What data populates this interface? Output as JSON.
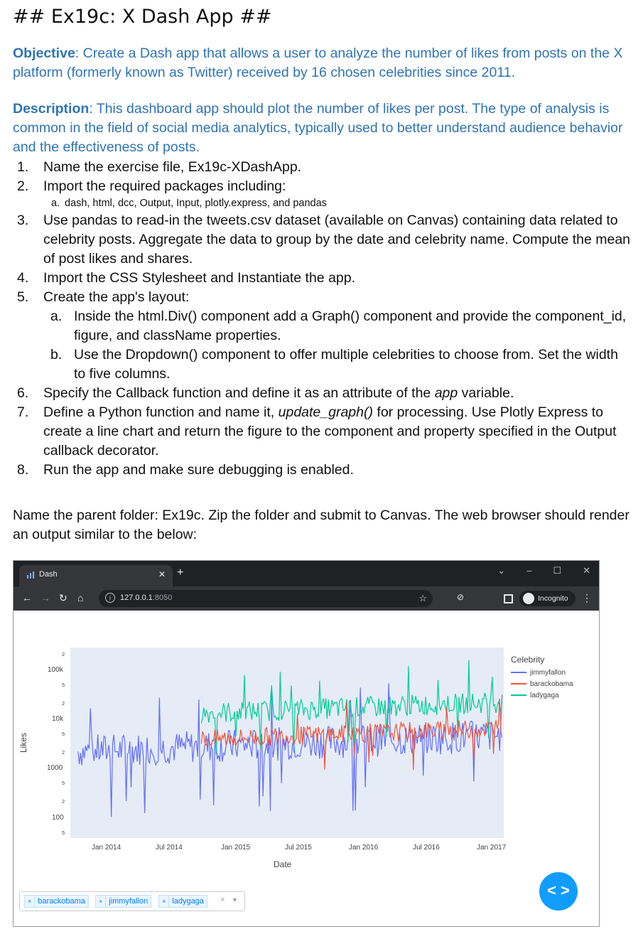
{
  "heading": "## Ex19c: X Dash App ##",
  "objective": {
    "label": "Objective",
    "text": ": Create a Dash app that allows a user to analyze the number of likes from posts on the X platform (formerly known as Twitter) received by 16 chosen celebrities since 2011."
  },
  "description": {
    "label": "Description",
    "text": ": This dashboard app should plot the number of likes per post. The type of analysis is common in the field of social media analytics, typically used to better understand audience behavior and the effectiveness of posts."
  },
  "steps": [
    {
      "num": "1.",
      "text": "Name the exercise file, Ex19c-XDashApp."
    },
    {
      "num": "2.",
      "text": "Import the required packages including:"
    },
    {
      "num": "a.",
      "text": "dash, html, dcc, Output, Input, plotly.express, and pandas"
    },
    {
      "num": "3.",
      "text": "Use pandas to read-in the tweets.csv dataset (available on Canvas) containing data related to celebrity posts. Aggregate the data to group by the date and celebrity name. Compute the mean of post likes and shares."
    },
    {
      "num": "4.",
      "text": "Import the CSS Stylesheet and Instantiate the app."
    },
    {
      "num": "5.",
      "text": "Create the app's layout:"
    },
    {
      "num": "a.",
      "text": "Inside the html.Div() component add a Graph() component and provide the component_id, figure, and className properties."
    },
    {
      "num": "b.",
      "text": "Use the Dropdown() component to offer multiple celebrities to choose from. Set the width to five columns."
    },
    {
      "num": "6.",
      "text_a": "Specify the Callback function and define it as an attribute of the ",
      "text_em": "app",
      "text_b": " variable."
    },
    {
      "num": "7.",
      "text_a": "Define a Python function and name it, ",
      "text_em": "update_graph()",
      "text_b": " for processing. Use Plotly Express to create a line chart and return the figure to the component and property specified in the Output callback decorator."
    },
    {
      "num": "8.",
      "text": "Run the app and make sure debugging is enabled."
    }
  ],
  "closing": "Name the parent folder: Ex19c. Zip the folder and submit to Canvas. The web browser should render an output similar to the below:",
  "browser": {
    "tab_title": "Dash",
    "url_host": "127.0.0.1",
    "url_port": ":8050",
    "incognito": "Incognito"
  },
  "chart_data": {
    "type": "line",
    "ylabel": "Likes",
    "xlabel": "Date",
    "yscale": "log",
    "ylim": [
      30,
      300000
    ],
    "y_major_ticks": [
      "100k",
      "10k",
      "1000",
      "100"
    ],
    "y_minor_ticks": [
      "2",
      "5",
      "2",
      "5",
      "2",
      "5",
      "2",
      "5"
    ],
    "x_ticks": [
      "Jan 2014",
      "Jul 2014",
      "Jan 2015",
      "Jul 2015",
      "Jan 2016",
      "Jul 2016",
      "Jan 2017"
    ],
    "legend_title": "Celebrity",
    "series": [
      {
        "name": "jimmyfallon",
        "color": "#636efa",
        "x_range": [
          "2013-08",
          "2017-01"
        ],
        "typical_y": [
          1000,
          10000
        ]
      },
      {
        "name": "barackobama",
        "color": "#ef553b",
        "x_range": [
          "2014-08",
          "2017-01"
        ],
        "typical_y": [
          1000,
          20000
        ]
      },
      {
        "name": "ladygaga",
        "color": "#00cc96",
        "x_range": [
          "2014-08",
          "2017-01"
        ],
        "typical_y": [
          3000,
          50000
        ]
      }
    ]
  },
  "dropdown": {
    "chips": [
      "barackobama",
      "jimmyfallon",
      "ladygaga"
    ],
    "clear": "×",
    "arrow": "▼"
  },
  "fab_label": "< >"
}
